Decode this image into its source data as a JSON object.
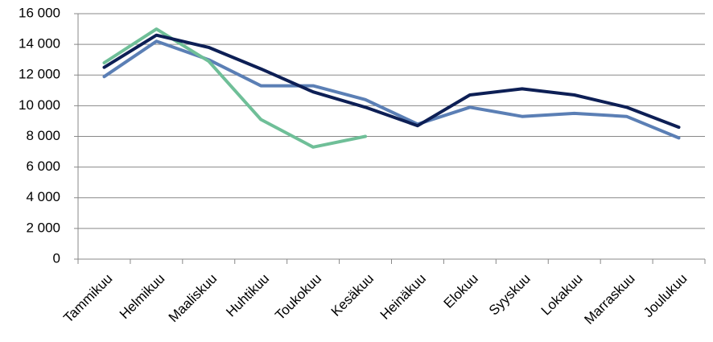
{
  "chart_data": {
    "type": "line",
    "categories": [
      "Tammikuu",
      "Helmikuu",
      "Maaliskuu",
      "Huhtikuu",
      "Toukokuu",
      "Kesäkuu",
      "Heinäkuu",
      "Elokuu",
      "Syyskuu",
      "Lokakuu",
      "Marraskuu",
      "Joulukuu"
    ],
    "series": [
      {
        "color": "#5b7fb5",
        "values": [
          11900,
          14200,
          13000,
          11300,
          11300,
          10400,
          8800,
          9900,
          9300,
          9500,
          9300,
          7900
        ]
      },
      {
        "color": "#6fbf98",
        "values": [
          12800,
          15000,
          12900,
          9100,
          7300,
          8000,
          null,
          null,
          null,
          null,
          null,
          null
        ]
      },
      {
        "color": "#0d1f55",
        "values": [
          12500,
          14600,
          13800,
          12400,
          10900,
          9900,
          8700,
          10700,
          11100,
          10700,
          9900,
          8600
        ]
      }
    ],
    "ylim": [
      0,
      16000
    ],
    "yticks": [
      0,
      {
        "value": 2000,
        "label": "2 000"
      },
      {
        "value": 4000,
        "label": "4 000"
      },
      {
        "value": 6000,
        "label": "6 000"
      },
      {
        "value": 8000,
        "label": "8 000"
      },
      {
        "value": 10000,
        "label": "10 000"
      },
      {
        "value": 12000,
        "label": "12 000"
      },
      {
        "value": 14000,
        "label": "14 000"
      },
      {
        "value": 16000,
        "label": "16 000"
      }
    ],
    "grid": true
  }
}
